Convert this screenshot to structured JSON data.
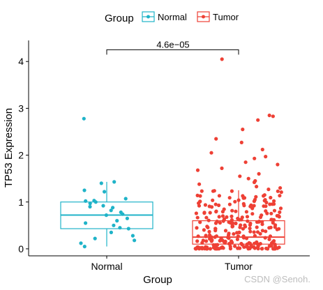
{
  "chart_data": {
    "type": "boxplot",
    "title": "",
    "xlabel": "Group",
    "ylabel": "TP53 Expression",
    "ylim": [
      -0.15,
      4.45
    ],
    "yticks": [
      0,
      1,
      2,
      3,
      4
    ],
    "grid": false,
    "legend": {
      "title": "Group",
      "placement": "top"
    },
    "categories": [
      "Normal",
      "Tumor"
    ],
    "series": [
      {
        "name": "Normal",
        "color": "#1fb3c8",
        "box": {
          "q1": 0.43,
          "median": 0.72,
          "q3": 1.0,
          "whisker_low": 0.05,
          "whisker_high": 1.43
        },
        "points": [
          2.78,
          1.43,
          1.4,
          1.22,
          1.25,
          1.07,
          1.03,
          1.0,
          1.02,
          0.97,
          0.92,
          0.9,
          0.88,
          0.82,
          0.78,
          0.74,
          0.72,
          0.65,
          0.6,
          0.55,
          0.5,
          0.45,
          0.43,
          0.35,
          0.28,
          0.22,
          0.18,
          0.12,
          0.05
        ]
      },
      {
        "name": "Tumor",
        "color": "#ee4035",
        "box": {
          "q1": 0.1,
          "median": 0.25,
          "q3": 0.6,
          "whisker_low": 0.0,
          "whisker_high": 1.25
        },
        "points": [
          4.05,
          2.85,
          2.83,
          2.75,
          2.55,
          2.35,
          2.27,
          2.12,
          2.05,
          1.97,
          1.93,
          1.85,
          1.8,
          1.72,
          1.68,
          1.6,
          1.55,
          1.5,
          1.45,
          1.42,
          1.38,
          1.33,
          1.3,
          1.27
        ]
      }
    ],
    "annotations": [
      {
        "text": "4.6e−05",
        "between": [
          "Normal",
          "Tumor"
        ],
        "y": 4.25
      }
    ]
  },
  "watermark": "CSDN @Senoh."
}
